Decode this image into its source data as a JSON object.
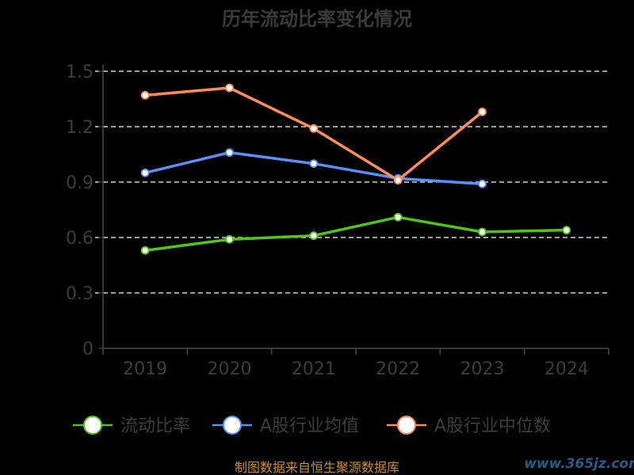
{
  "chart_data": {
    "type": "line",
    "title": "历年流动比率变化情况",
    "categories": [
      "2019",
      "2020",
      "2021",
      "2022",
      "2023",
      "2024"
    ],
    "yticks": [
      "0",
      "0.3",
      "0.6",
      "0.9",
      "1.2",
      "1.5"
    ],
    "ylim": [
      0,
      1.5
    ],
    "grid": true,
    "legend_position": "bottom",
    "series": [
      {
        "name": "流动比率",
        "color": "#52c41a",
        "values": [
          0.53,
          0.59,
          0.61,
          0.71,
          0.63,
          0.64
        ]
      },
      {
        "name": "A股行业均值",
        "color": "#5b8ff9",
        "values": [
          0.95,
          1.06,
          1.0,
          0.92,
          0.89,
          null
        ]
      },
      {
        "name": "A股行业中位数",
        "color": "#ff8c5a",
        "values": [
          1.37,
          1.41,
          1.19,
          0.91,
          1.28,
          null
        ]
      }
    ]
  },
  "footer": {
    "source": "制图数据来自恒生聚源数据库",
    "watermark": "www.365jz.com"
  }
}
